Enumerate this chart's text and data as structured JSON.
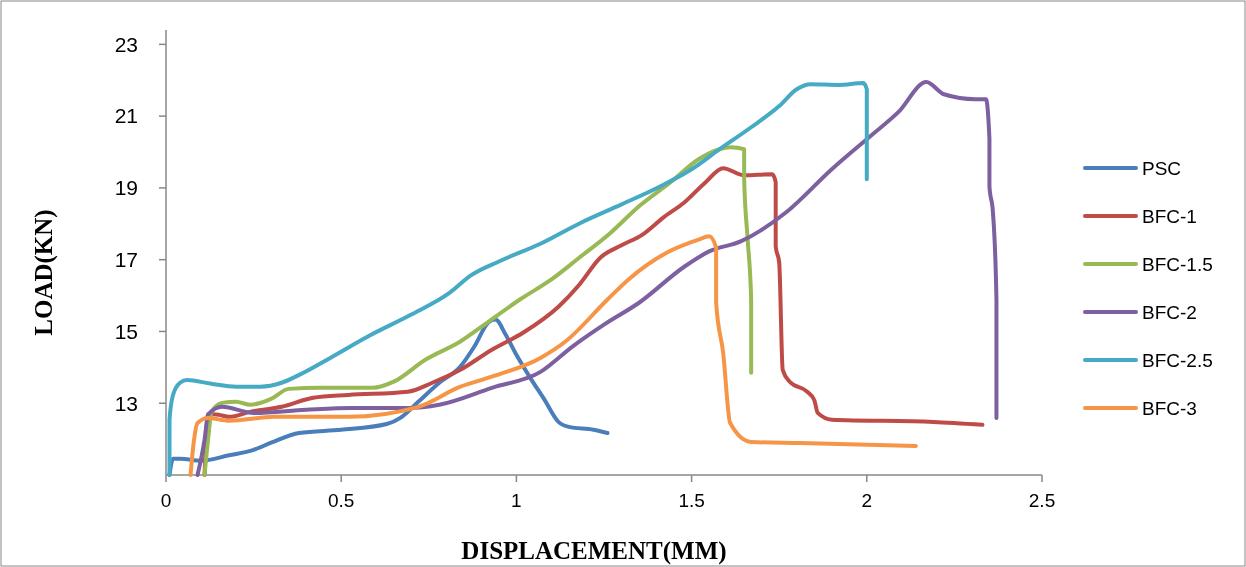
{
  "chart_data": {
    "type": "line",
    "xlabel": "DISPLACEMENT(MM)",
    "ylabel": "LOAD(KN)",
    "xlim": [
      0,
      2.5
    ],
    "xticks": [
      0,
      0.5,
      1,
      1.5,
      2,
      2.5
    ],
    "ylim": [
      11,
      23.4
    ],
    "yticks": [
      13,
      15,
      17,
      19,
      21,
      23
    ],
    "grid": false,
    "legend": "right",
    "marker": "none",
    "line_style": "solid",
    "series": [
      {
        "name": "PSC",
        "color": "#4a7ebb",
        "x": [
          0.01,
          0.02,
          0.04,
          0.1,
          0.18,
          0.25,
          0.3,
          0.38,
          0.5,
          0.63,
          0.67,
          0.72,
          0.78,
          0.84,
          0.88,
          0.92,
          0.94,
          0.97,
          1.0,
          1.04,
          1.08,
          1.12,
          1.15,
          1.22,
          1.26
        ],
        "values": [
          11.0,
          11.45,
          11.45,
          11.4,
          11.55,
          11.7,
          11.9,
          12.17,
          12.26,
          12.42,
          12.6,
          13.04,
          13.57,
          14.02,
          14.58,
          15.25,
          15.33,
          14.9,
          14.35,
          13.7,
          13.1,
          12.48,
          12.34,
          12.26,
          12.17
        ]
      },
      {
        "name": "BFC-1",
        "color": "#be4b48",
        "x": [
          0.11,
          0.12,
          0.15,
          0.18,
          0.24,
          0.33,
          0.42,
          0.52,
          0.69,
          0.76,
          0.84,
          0.93,
          1.02,
          1.12,
          1.18,
          1.24,
          1.3,
          1.36,
          1.42,
          1.48,
          1.54,
          1.59,
          1.65,
          1.73,
          1.74,
          1.74,
          1.75,
          1.76,
          1.78,
          1.83,
          1.85,
          1.86,
          1.9,
          2.19,
          2.33
        ],
        "values": [
          11.0,
          12.7,
          12.68,
          12.62,
          12.76,
          12.9,
          13.15,
          13.23,
          13.32,
          13.57,
          13.93,
          14.49,
          14.97,
          15.69,
          16.31,
          17.06,
          17.4,
          17.7,
          18.18,
          18.6,
          19.16,
          19.55,
          19.35,
          19.38,
          19.16,
          17.37,
          16.92,
          13.93,
          13.6,
          13.32,
          13.09,
          12.73,
          12.54,
          12.48,
          12.4
        ]
      },
      {
        "name": "BFC-1.5",
        "color": "#98b954",
        "x": [
          0.11,
          0.12,
          0.13,
          0.16,
          0.2,
          0.24,
          0.3,
          0.35,
          0.44,
          0.59,
          0.65,
          0.74,
          0.84,
          0.92,
          1.01,
          1.1,
          1.18,
          1.27,
          1.35,
          1.44,
          1.52,
          1.58,
          1.61,
          1.65,
          1.65,
          1.66,
          1.67,
          1.67
        ],
        "values": [
          11.0,
          11.98,
          12.76,
          13.01,
          13.04,
          12.96,
          13.12,
          13.4,
          13.43,
          13.43,
          13.6,
          14.21,
          14.72,
          15.27,
          15.89,
          16.45,
          17.06,
          17.76,
          18.49,
          19.16,
          19.8,
          20.08,
          20.13,
          20.08,
          19.24,
          17.56,
          15.89,
          13.85
        ]
      },
      {
        "name": "BFC-2",
        "color": "#7d60a0",
        "x": [
          0.09,
          0.11,
          0.12,
          0.16,
          0.25,
          0.4,
          0.53,
          0.69,
          0.78,
          0.93,
          1.07,
          1.16,
          1.25,
          1.35,
          1.48,
          1.55,
          1.64,
          1.77,
          1.9,
          2.01,
          2.09,
          2.17,
          2.22,
          2.31,
          2.34,
          2.35,
          2.35,
          2.36,
          2.37,
          2.37
        ],
        "values": [
          11.0,
          11.98,
          12.68,
          12.9,
          12.73,
          12.82,
          12.87,
          12.87,
          12.96,
          13.43,
          13.88,
          14.58,
          15.19,
          15.8,
          16.81,
          17.23,
          17.51,
          18.32,
          19.52,
          20.44,
          21.11,
          21.95,
          21.61,
          21.47,
          21.47,
          20.36,
          19.04,
          18.32,
          15.89,
          12.59
        ]
      },
      {
        "name": "BFC-2.5",
        "color": "#46aac5",
        "x": [
          0.01,
          0.01,
          0.02,
          0.04,
          0.06,
          0.13,
          0.2,
          0.27,
          0.33,
          0.38,
          0.47,
          0.58,
          0.7,
          0.81,
          0.87,
          0.95,
          1.07,
          1.18,
          1.3,
          1.41,
          1.5,
          1.58,
          1.67,
          1.75,
          1.8,
          1.84,
          1.92,
          1.99,
          2.0,
          2.0,
          2.0
        ],
        "values": [
          11.0,
          12.54,
          13.23,
          13.57,
          13.65,
          13.54,
          13.46,
          13.46,
          13.57,
          13.79,
          14.27,
          14.88,
          15.47,
          16.08,
          16.56,
          16.95,
          17.45,
          18.01,
          18.54,
          19.04,
          19.52,
          20.08,
          20.69,
          21.28,
          21.75,
          21.89,
          21.87,
          21.92,
          21.75,
          20.92,
          19.24
        ]
      },
      {
        "name": "BFC-3",
        "color": "#f69546",
        "x": [
          0.07,
          0.08,
          0.09,
          0.12,
          0.18,
          0.31,
          0.52,
          0.72,
          0.84,
          0.93,
          1.07,
          1.14,
          1.26,
          1.32,
          1.43,
          1.52,
          1.55,
          1.57,
          1.57,
          1.59,
          1.61,
          1.67,
          1.81,
          2.14
        ],
        "values": [
          11.0,
          11.98,
          12.45,
          12.59,
          12.51,
          12.62,
          12.62,
          12.9,
          13.46,
          13.74,
          14.27,
          14.72,
          15.89,
          16.45,
          17.2,
          17.56,
          17.65,
          17.34,
          15.8,
          14.41,
          12.45,
          11.92,
          11.89,
          11.81
        ]
      }
    ]
  }
}
